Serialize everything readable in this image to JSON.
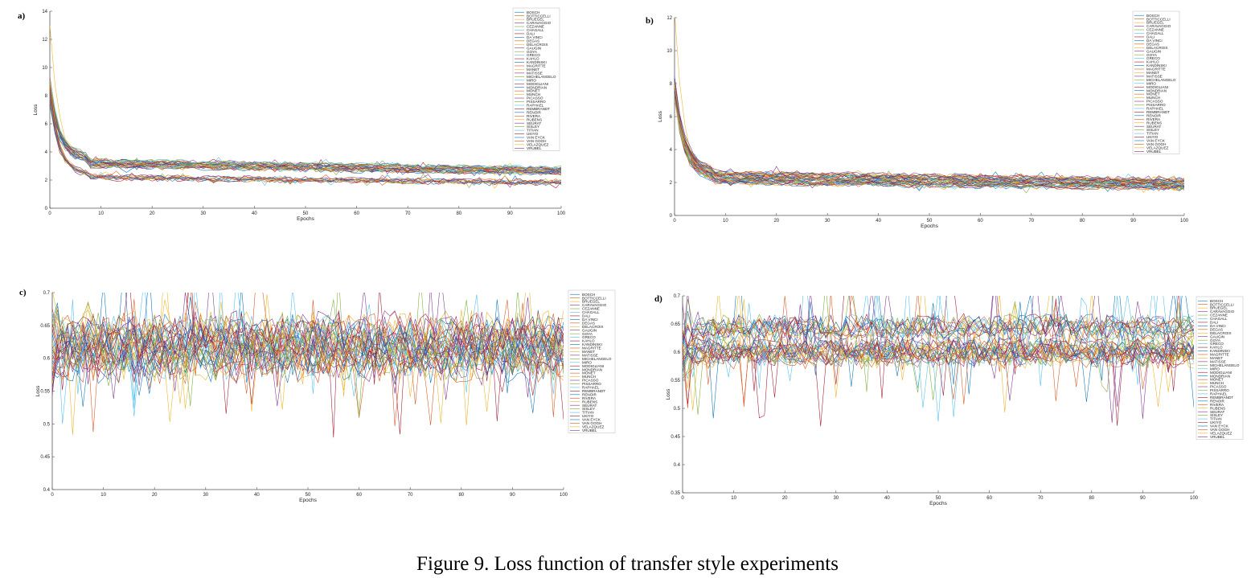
{
  "figure": {
    "caption": "Figure 9.  Loss function of transfer style experiments"
  },
  "artists": [
    "BOSCH",
    "BOTTICCELLI",
    "BRUEGEL",
    "CARAVAGGIO",
    "CEZANNE",
    "CHAGALL",
    "DALI",
    "DA VINCI",
    "DEGAS",
    "DELACROIX",
    "GAUGIN",
    "GOYA",
    "GRECO",
    "KAHLO",
    "KANDINSKI",
    "MAGRITTE",
    "MANET",
    "MATISSE",
    "MICHELANGELO",
    "MIRO",
    "MODIGLIANI",
    "MONDRIAN",
    "MONET",
    "MUNCH",
    "PICASSO",
    "PISSARRO",
    "RAPHAEL",
    "REMBRANDT",
    "RENOIR",
    "RIVERA",
    "RUBENS",
    "SEURAT",
    "SISLEY",
    "TITIAN",
    "UKIYO",
    "VAN EYCK",
    "VAN GOGH",
    "VELAZQUEZ",
    "VRUBEL"
  ],
  "colors": [
    "#0072BD",
    "#D95319",
    "#EDB120",
    "#7E2F8E",
    "#77AC30",
    "#4DBEEE",
    "#A2142F"
  ],
  "chart_data": [
    {
      "panel": "a)",
      "type": "line",
      "xlabel": "Epochs",
      "ylabel": "Loss",
      "xlim": [
        0,
        100
      ],
      "ylim": [
        0,
        14
      ],
      "xticks": [
        0,
        10,
        20,
        30,
        40,
        50,
        60,
        70,
        80,
        90,
        100
      ],
      "yticks": [
        0,
        2,
        4,
        6,
        8,
        10,
        12,
        14
      ],
      "series_profile": {
        "start": 7.5,
        "plateau": 2.8,
        "plateau_spread": 1.4,
        "decay": 1.6,
        "noise": 0.15,
        "spikes": 0.25,
        "peak_start": 12.0,
        "peak_epoch": 0.3
      }
    },
    {
      "panel": "b)",
      "type": "line",
      "xlabel": "Epochs",
      "ylabel": "Loss",
      "xlim": [
        0,
        100
      ],
      "ylim": [
        0,
        12
      ],
      "xticks": [
        0,
        10,
        20,
        30,
        40,
        50,
        60,
        70,
        80,
        90,
        100
      ],
      "yticks": [
        0,
        2,
        4,
        6,
        8,
        10,
        12
      ],
      "series_profile": {
        "start": 7.0,
        "plateau": 2.6,
        "plateau_spread": 1.3,
        "decay": 1.7,
        "noise": 0.14,
        "spikes": 0.22,
        "peak_start": 11.8,
        "peak_epoch": 0.4
      }
    },
    {
      "panel": "c)",
      "type": "line",
      "xlabel": "Epochs",
      "ylabel": "Loss",
      "xlim": [
        0,
        100
      ],
      "ylim": [
        0.4,
        0.7
      ],
      "xticks": [
        0,
        10,
        20,
        30,
        40,
        50,
        60,
        70,
        80,
        90,
        100
      ],
      "yticks": [
        0.4,
        0.45,
        0.5,
        0.55,
        0.6,
        0.65,
        0.7
      ],
      "series_profile": {
        "start": 0.62,
        "plateau": 0.6,
        "plateau_spread": 0.1,
        "decay": 0.0,
        "noise": 0.03,
        "spikes": 0.07,
        "peak_start": 0.69,
        "peak_epoch": 2
      }
    },
    {
      "panel": "d)",
      "type": "line",
      "xlabel": "Epochs",
      "ylabel": "Loss",
      "xlim": [
        0,
        100
      ],
      "ylim": [
        0.35,
        0.7
      ],
      "xticks": [
        0,
        10,
        20,
        30,
        40,
        50,
        60,
        70,
        80,
        90,
        100
      ],
      "yticks": [
        0.35,
        0.4,
        0.45,
        0.5,
        0.55,
        0.6,
        0.65,
        0.7
      ],
      "series_profile": {
        "start": 0.6,
        "plateau": 0.62,
        "plateau_spread": 0.06,
        "decay": 0.0,
        "noise": 0.02,
        "spikes": 0.08,
        "peak_start": 0.67,
        "peak_epoch": 3
      }
    }
  ]
}
